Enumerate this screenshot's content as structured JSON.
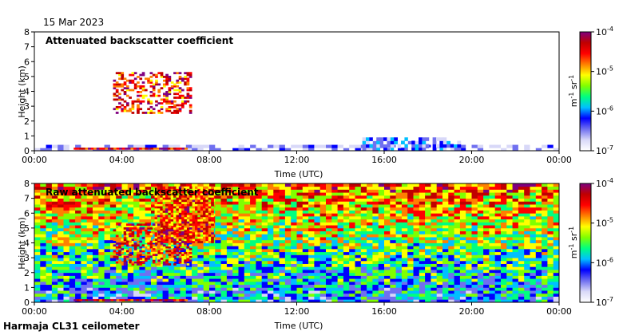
{
  "header": {
    "date": "15 Mar 2023"
  },
  "footer": {
    "site": "Harmaja CL31 ceilometer"
  },
  "colorbar": {
    "unit_main": "m",
    "unit_exp1": "-1",
    "unit_mid": " sr",
    "unit_exp2": "-1",
    "tick_base": "10",
    "ticks": [
      {
        "value": 0.0001,
        "exp": "-4"
      },
      {
        "value": 1e-05,
        "exp": "-5"
      },
      {
        "value": 1e-06,
        "exp": "-6"
      },
      {
        "value": 1e-07,
        "exp": "-7"
      }
    ],
    "colors": [
      "#ffffff",
      "#d8d8f8",
      "#7070f0",
      "#0000ff",
      "#00c0ff",
      "#00ff80",
      "#80ff00",
      "#ffff00",
      "#ff8000",
      "#ff0000",
      "#c00000",
      "#800080"
    ]
  },
  "chart_data": [
    {
      "type": "heatmap",
      "title": "Attenuated backscatter coefficient",
      "xlabel": "Time (UTC)",
      "ylabel": "Height (km)",
      "xlim": [
        0,
        24
      ],
      "ylim": [
        0,
        8
      ],
      "xticks": [
        "00:00",
        "04:00",
        "08:00",
        "12:00",
        "16:00",
        "20:00",
        "00:00"
      ],
      "yticks": [
        "0",
        "1",
        "2",
        "3",
        "4",
        "5",
        "6",
        "7",
        "8"
      ],
      "colorscale": {
        "min": 1e-07,
        "max": 0.0001,
        "log": true
      },
      "features": [
        {
          "name": "boundary layer",
          "t_start": 0.0,
          "t_end": 24.0,
          "h_top_km": 0.4,
          "level": 1.5e-07
        },
        {
          "name": "low cloud base",
          "t_start": 1.8,
          "t_end": 7.0,
          "h_km": 0.15,
          "level": 5e-05
        },
        {
          "name": "elevated layer",
          "t_start": 15.0,
          "t_end": 19.5,
          "h_top_km": 0.9,
          "level": 4e-07
        },
        {
          "name": "mid cloud",
          "t_start": 3.6,
          "t_end": 7.2,
          "h_bottom_km": 2.5,
          "h_top_km": 5.3,
          "level": 3e-05
        }
      ]
    },
    {
      "type": "heatmap",
      "title": "Raw attenuated backscatter coefficient",
      "xlabel": "Time (UTC)",
      "ylabel": "Height (km)",
      "xlim": [
        0,
        24
      ],
      "ylim": [
        0,
        8
      ],
      "xticks": [
        "00:00",
        "04:00",
        "08:00",
        "12:00",
        "16:00",
        "20:00",
        "00:00"
      ],
      "yticks": [
        "0",
        "1",
        "2",
        "3",
        "4",
        "5",
        "6",
        "7",
        "8"
      ],
      "colorscale": {
        "min": 1e-07,
        "max": 0.0001,
        "log": true
      },
      "features": [
        {
          "name": "noise background",
          "t_start": 0.0,
          "t_end": 24.0,
          "level": 2e-06
        },
        {
          "name": "enhanced noise",
          "t_start": 5.5,
          "t_end": 8.2,
          "h_bottom_km": 4.0,
          "h_top_km": 7.8,
          "level": 2e-05
        },
        {
          "name": "mid cloud",
          "t_start": 3.6,
          "t_end": 7.2,
          "h_bottom_km": 2.5,
          "h_top_km": 5.3,
          "level": 3e-05
        },
        {
          "name": "low cloud base",
          "t_start": 1.8,
          "t_end": 7.0,
          "h_km": 0.15,
          "level": 5e-05
        }
      ]
    }
  ]
}
